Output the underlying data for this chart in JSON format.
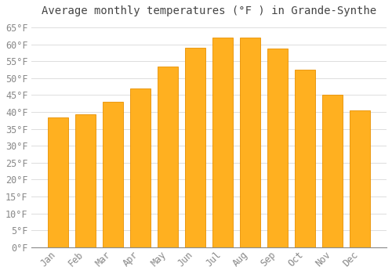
{
  "title": "Average monthly temperatures (°F ) in Grande-Synthe",
  "months": [
    "Jan",
    "Feb",
    "Mar",
    "Apr",
    "May",
    "Jun",
    "Jul",
    "Aug",
    "Sep",
    "Oct",
    "Nov",
    "Dec"
  ],
  "values": [
    38.5,
    39.2,
    43.0,
    47.0,
    53.5,
    59.0,
    62.0,
    62.0,
    58.8,
    52.5,
    45.0,
    40.5
  ],
  "bar_color": "#FFB020",
  "bar_edge_color": "#E89000",
  "background_color": "#FFFFFF",
  "grid_color": "#DDDDDD",
  "ylim": [
    0,
    67
  ],
  "yticks": [
    0,
    5,
    10,
    15,
    20,
    25,
    30,
    35,
    40,
    45,
    50,
    55,
    60,
    65
  ],
  "tick_label_color": "#888888",
  "title_fontsize": 10,
  "tick_fontsize": 8.5
}
